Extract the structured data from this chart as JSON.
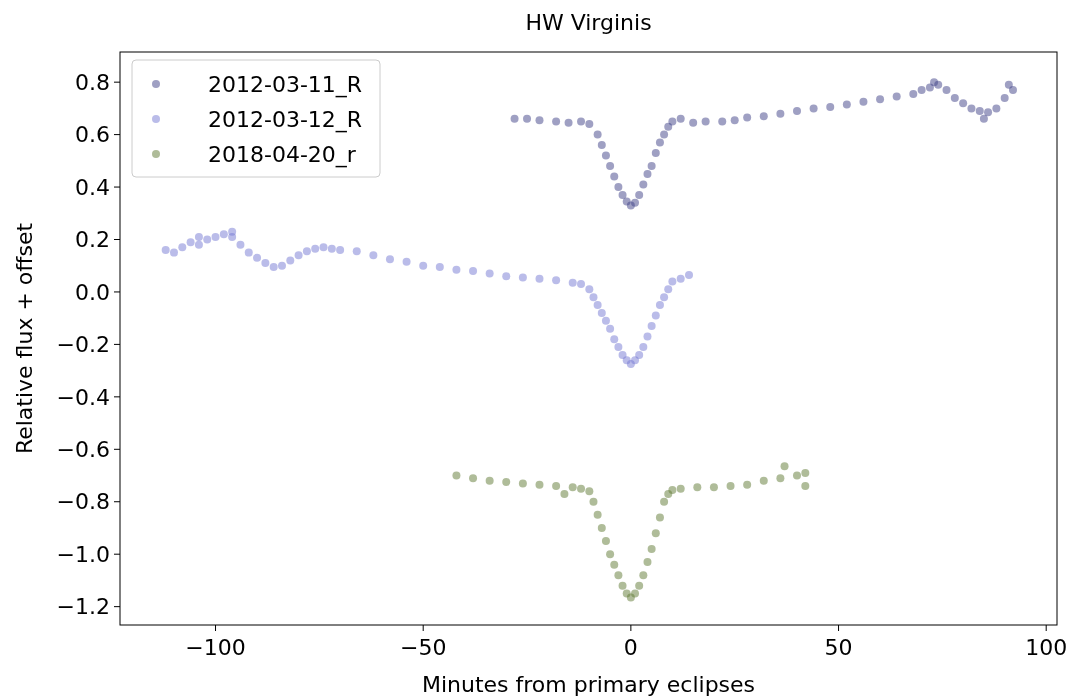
{
  "chart_data": {
    "type": "scatter",
    "title": "HW Virginis",
    "xlabel": "Minutes from primary eclipses",
    "ylabel": "Relative flux + offset",
    "xlim": [
      -123,
      102.6
    ],
    "ylim": [
      -1.27,
      0.915
    ],
    "xticks": [
      {
        "value": -100,
        "label": "−100"
      },
      {
        "value": -50,
        "label": "−50"
      },
      0,
      50,
      100
    ],
    "yticks": [
      {
        "value": -1.2,
        "label": "−1.2"
      },
      {
        "value": -1.0,
        "label": "−1.0"
      },
      {
        "value": -0.8,
        "label": "−0.8"
      },
      {
        "value": -0.6,
        "label": "−0.6"
      },
      {
        "value": -0.4,
        "label": "−0.4"
      },
      {
        "value": -0.2,
        "label": "−0.2"
      },
      {
        "value": 0,
        "label": "0.0"
      },
      {
        "value": 0.2,
        "label": "0.2"
      },
      {
        "value": 0.4,
        "label": "0.4"
      },
      {
        "value": 0.6,
        "label": "0.6"
      },
      {
        "value": 0.8,
        "label": "0.8"
      }
    ],
    "legend": "top left",
    "marker": "circle",
    "grid": false,
    "series": [
      {
        "name": "2012-03-11_R",
        "color": "#3f4187",
        "x": [
          -28,
          -25,
          -22,
          -18,
          -15,
          -12,
          -10,
          -8,
          -7,
          -6,
          -5,
          -4,
          -3,
          -2,
          -1,
          0,
          1,
          2,
          3,
          4,
          5,
          6,
          7,
          8,
          9,
          10,
          12,
          15,
          18,
          22,
          25,
          28,
          32,
          36,
          40,
          44,
          48,
          52,
          56,
          60,
          64,
          68,
          70,
          72,
          74,
          76,
          78,
          80,
          82,
          84,
          86,
          88,
          90,
          92,
          85,
          73,
          91
        ],
        "values": [
          0.66,
          0.66,
          0.655,
          0.65,
          0.645,
          0.65,
          0.64,
          0.6,
          0.56,
          0.52,
          0.48,
          0.44,
          0.4,
          0.37,
          0.345,
          0.33,
          0.34,
          0.37,
          0.41,
          0.45,
          0.48,
          0.53,
          0.57,
          0.6,
          0.63,
          0.65,
          0.66,
          0.645,
          0.65,
          0.65,
          0.655,
          0.665,
          0.67,
          0.68,
          0.69,
          0.7,
          0.705,
          0.715,
          0.725,
          0.735,
          0.745,
          0.755,
          0.77,
          0.78,
          0.79,
          0.77,
          0.74,
          0.72,
          0.7,
          0.69,
          0.685,
          0.7,
          0.74,
          0.77,
          0.66,
          0.8,
          0.79
        ]
      },
      {
        "name": "2012-03-12_R",
        "color": "#7679d3",
        "x": [
          -112,
          -110,
          -108,
          -106,
          -104,
          -102,
          -100,
          -98,
          -96,
          -94,
          -92,
          -90,
          -88,
          -86,
          -84,
          -82,
          -80,
          -78,
          -76,
          -74,
          -72,
          -70,
          -66,
          -62,
          -58,
          -54,
          -50,
          -46,
          -42,
          -38,
          -34,
          -30,
          -26,
          -22,
          -18,
          -14,
          -12,
          -10,
          -9,
          -8,
          -7,
          -6,
          -5,
          -4,
          -3,
          -2,
          -1,
          0,
          1,
          2,
          3,
          4,
          5,
          6,
          7,
          8,
          9,
          10,
          12,
          14,
          -104,
          -96
        ],
        "values": [
          0.16,
          0.15,
          0.17,
          0.19,
          0.18,
          0.2,
          0.21,
          0.22,
          0.21,
          0.18,
          0.15,
          0.13,
          0.11,
          0.095,
          0.1,
          0.12,
          0.14,
          0.155,
          0.165,
          0.17,
          0.165,
          0.16,
          0.155,
          0.14,
          0.125,
          0.115,
          0.1,
          0.095,
          0.085,
          0.08,
          0.07,
          0.06,
          0.055,
          0.05,
          0.045,
          0.035,
          0.03,
          0.01,
          -0.02,
          -0.05,
          -0.08,
          -0.11,
          -0.14,
          -0.18,
          -0.21,
          -0.24,
          -0.26,
          -0.275,
          -0.26,
          -0.24,
          -0.21,
          -0.17,
          -0.13,
          -0.09,
          -0.05,
          -0.02,
          0.01,
          0.04,
          0.05,
          0.065,
          0.21,
          0.23
        ]
      },
      {
        "name": "2018-04-20_r",
        "color": "#5f7a34",
        "x": [
          -42,
          -38,
          -34,
          -30,
          -26,
          -22,
          -18,
          -14,
          -12,
          -10,
          -9,
          -8,
          -7,
          -6,
          -5,
          -4,
          -3,
          -2,
          -1,
          0,
          1,
          2,
          3,
          4,
          5,
          6,
          7,
          8,
          9,
          10,
          12,
          16,
          20,
          24,
          28,
          32,
          36,
          40,
          42,
          37,
          42,
          -16
        ],
        "values": [
          -0.7,
          -0.71,
          -0.72,
          -0.725,
          -0.73,
          -0.735,
          -0.74,
          -0.745,
          -0.75,
          -0.76,
          -0.8,
          -0.85,
          -0.9,
          -0.95,
          -1.0,
          -1.04,
          -1.08,
          -1.12,
          -1.15,
          -1.165,
          -1.15,
          -1.12,
          -1.08,
          -1.03,
          -0.98,
          -0.92,
          -0.86,
          -0.8,
          -0.77,
          -0.755,
          -0.75,
          -0.745,
          -0.745,
          -0.74,
          -0.735,
          -0.72,
          -0.71,
          -0.7,
          -0.69,
          -0.665,
          -0.74,
          -0.77
        ]
      }
    ]
  }
}
